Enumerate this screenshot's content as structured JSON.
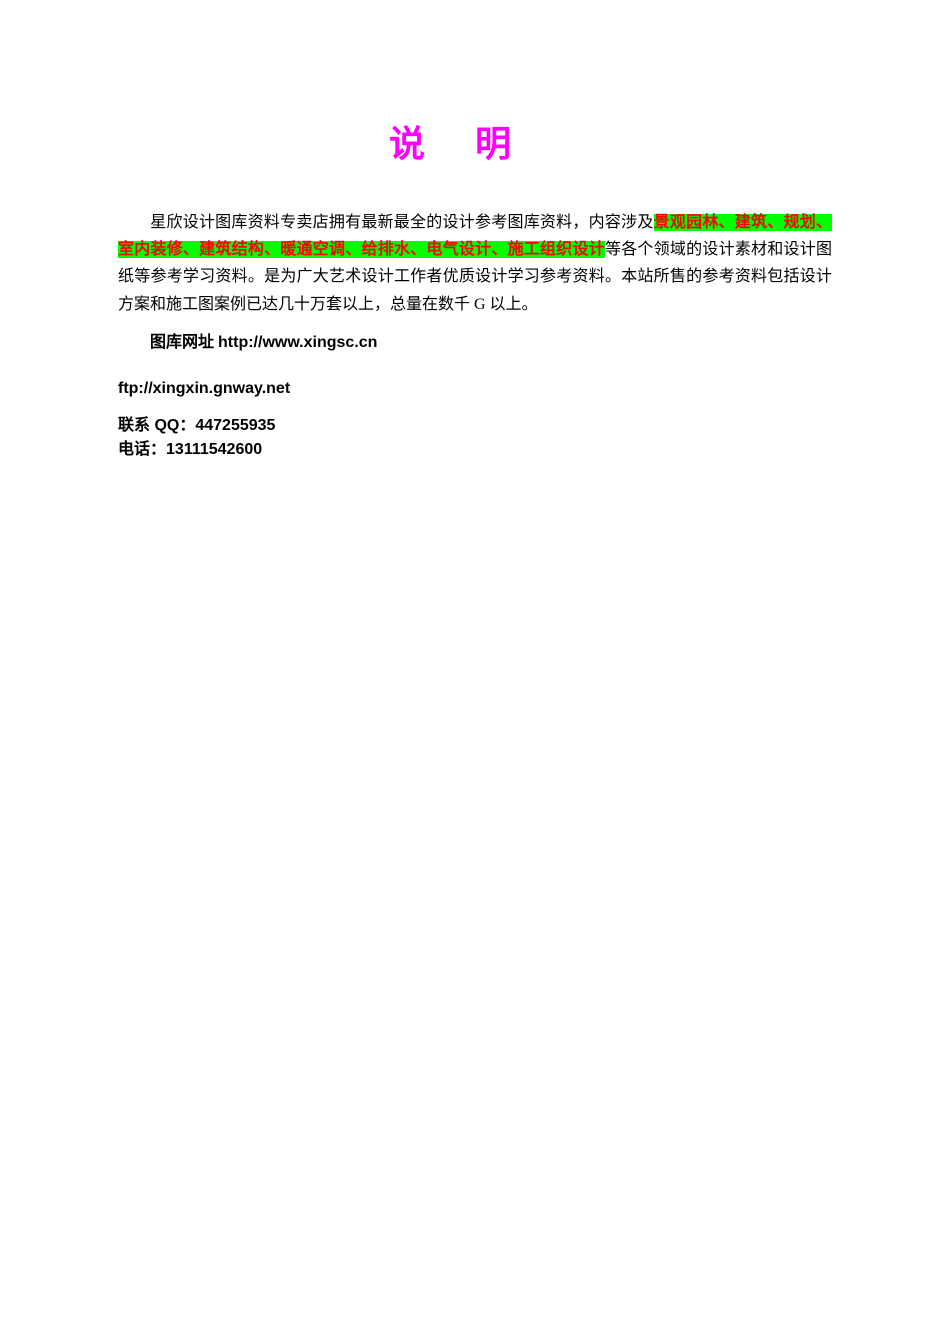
{
  "title": "说明",
  "paragraph": {
    "prefix": "星欣设计图库资料专卖店拥有最新最全的设计参考图库资料，内容涉及",
    "highlighted": "景观园林、建筑、规划、室内装修、建筑结构、暖通空调、给排水、电气设计、施工组织设计",
    "suffix": "等各个领域的设计素材和设计图纸等参考学习资料。是为广大艺术设计工作者优质设计学习参考资料。本站所售的参考资料包括设计方案和施工图案例已达几十万套以上，总量在数千 G 以上。"
  },
  "url": {
    "label": "图库网址 ",
    "value": "http://www.xingsc.cn"
  },
  "ftp": {
    "value": "ftp://xingxin.gnway.net"
  },
  "contact": {
    "qq_label": "联系 QQ：",
    "qq_value": "447255935",
    "phone_label": "电话：",
    "phone_value": "13111542600"
  },
  "colors": {
    "title_color": "#ff00ff",
    "highlight_bg": "#00ff00",
    "highlight_text": "#ff0000",
    "body_text": "#000000",
    "background": "#ffffff"
  },
  "typography": {
    "title_fontsize": 36,
    "body_fontsize": 16,
    "title_letterspacing": 50
  }
}
